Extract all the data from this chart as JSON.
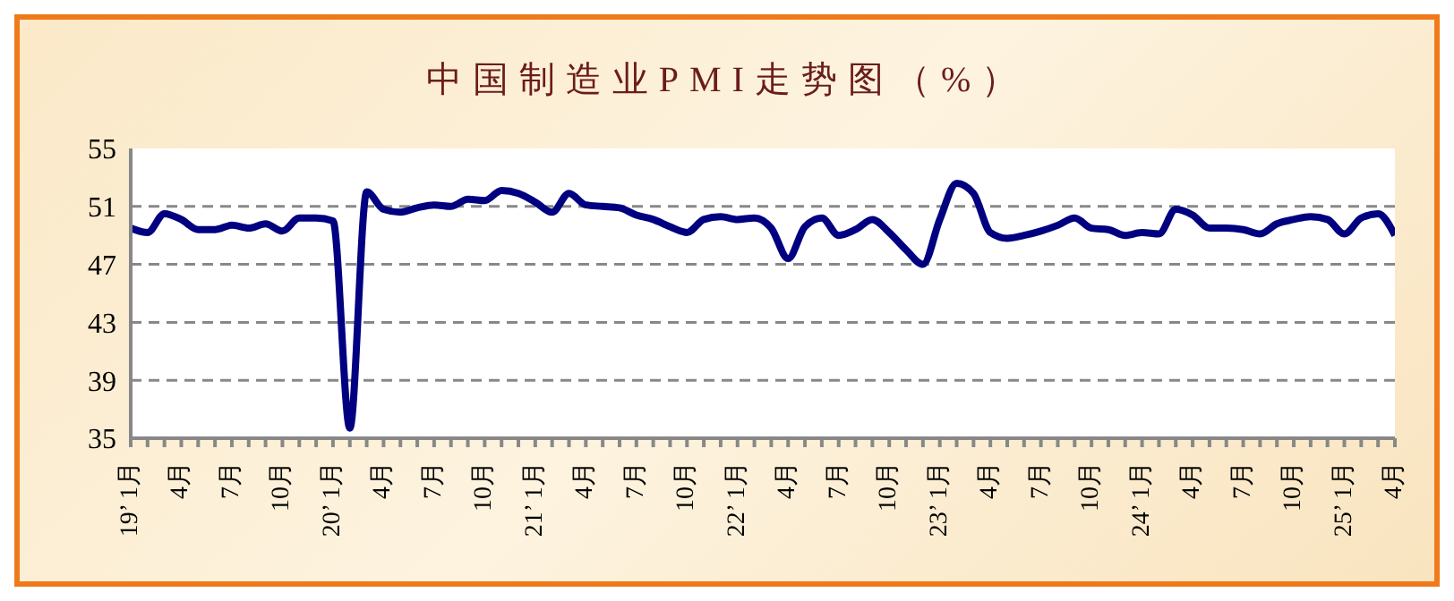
{
  "chart_data": {
    "type": "line",
    "title": "中国制造业PMI走势图（%）",
    "categories": [
      "19’ 1月",
      null,
      null,
      "4月",
      null,
      null,
      "7月",
      null,
      null,
      "10月",
      null,
      null,
      "20’ 1月",
      null,
      null,
      "4月",
      null,
      null,
      "7月",
      null,
      null,
      "10月",
      null,
      null,
      "21’ 1月",
      null,
      null,
      "4月",
      null,
      null,
      "7月",
      null,
      null,
      "10月",
      null,
      null,
      "22’ 1月",
      null,
      null,
      "4月",
      null,
      null,
      "7月",
      null,
      null,
      "10月",
      null,
      null,
      "23’ 1月",
      null,
      null,
      "4月",
      null,
      null,
      "7月",
      null,
      null,
      "10月",
      null,
      null,
      "24’ 1月",
      null,
      null,
      "4月",
      null,
      null,
      "7月",
      null,
      null,
      "10月",
      null,
      null,
      "25’ 1月",
      null,
      null,
      "4月"
    ],
    "series": [
      {
        "color": "#000080",
        "values": [
          49.5,
          49.2,
          50.5,
          50.1,
          49.4,
          49.4,
          49.7,
          49.5,
          49.8,
          49.3,
          50.2,
          50.2,
          50.0,
          35.7,
          52.0,
          50.8,
          50.6,
          50.9,
          51.1,
          51.0,
          51.5,
          51.4,
          52.1,
          51.9,
          51.3,
          50.6,
          51.9,
          51.1,
          51.0,
          50.9,
          50.4,
          50.1,
          49.6,
          49.2,
          50.1,
          50.3,
          50.1,
          50.2,
          49.5,
          47.4,
          49.6,
          50.2,
          49.0,
          49.4,
          50.1,
          49.2,
          48.0,
          47.0,
          50.1,
          52.6,
          51.9,
          49.2,
          48.8,
          49.0,
          49.3,
          49.7,
          50.2,
          49.5,
          49.4,
          49.0,
          49.2,
          49.1,
          50.8,
          50.4,
          49.5,
          49.5,
          49.4,
          49.1,
          49.8,
          50.1,
          50.3,
          50.1,
          49.1,
          50.2,
          50.5,
          49.0
        ]
      }
    ],
    "ylim": [
      35,
      55
    ],
    "yticks": [
      35,
      39,
      43,
      47,
      51,
      55
    ],
    "grid": "y",
    "legend": false,
    "marker": "none",
    "line_style": "solid"
  }
}
